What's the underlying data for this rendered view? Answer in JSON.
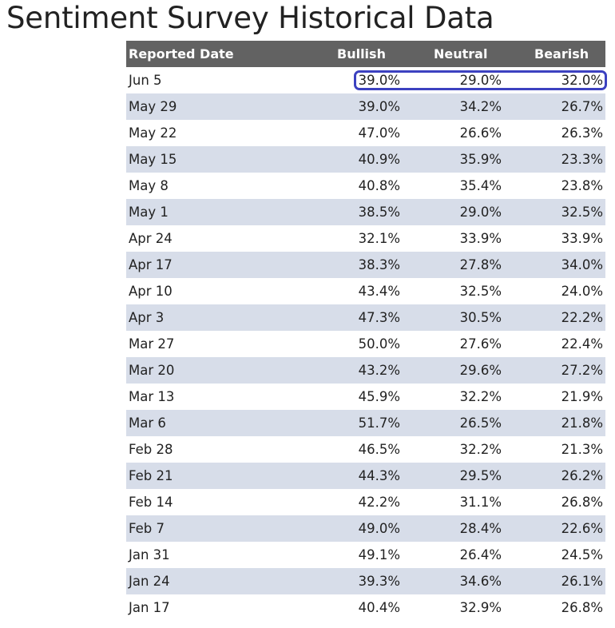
{
  "title": "Sentiment Survey Historical Data",
  "table": {
    "headers": {
      "date": "Reported Date",
      "bullish": "Bullish",
      "neutral": "Neutral",
      "bearish": "Bearish"
    },
    "rows": [
      {
        "date": "Jun 5",
        "bullish": "39.0%",
        "neutral": "29.0%",
        "bearish": "32.0%"
      },
      {
        "date": "May 29",
        "bullish": "39.0%",
        "neutral": "34.2%",
        "bearish": "26.7%"
      },
      {
        "date": "May 22",
        "bullish": "47.0%",
        "neutral": "26.6%",
        "bearish": "26.3%"
      },
      {
        "date": "May 15",
        "bullish": "40.9%",
        "neutral": "35.9%",
        "bearish": "23.3%"
      },
      {
        "date": "May 8",
        "bullish": "40.8%",
        "neutral": "35.4%",
        "bearish": "23.8%"
      },
      {
        "date": "May 1",
        "bullish": "38.5%",
        "neutral": "29.0%",
        "bearish": "32.5%"
      },
      {
        "date": "Apr 24",
        "bullish": "32.1%",
        "neutral": "33.9%",
        "bearish": "33.9%"
      },
      {
        "date": "Apr 17",
        "bullish": "38.3%",
        "neutral": "27.8%",
        "bearish": "34.0%"
      },
      {
        "date": "Apr 10",
        "bullish": "43.4%",
        "neutral": "32.5%",
        "bearish": "24.0%"
      },
      {
        "date": "Apr 3",
        "bullish": "47.3%",
        "neutral": "30.5%",
        "bearish": "22.2%"
      },
      {
        "date": "Mar 27",
        "bullish": "50.0%",
        "neutral": "27.6%",
        "bearish": "22.4%"
      },
      {
        "date": "Mar 20",
        "bullish": "43.2%",
        "neutral": "29.6%",
        "bearish": "27.2%"
      },
      {
        "date": "Mar 13",
        "bullish": "45.9%",
        "neutral": "32.2%",
        "bearish": "21.9%"
      },
      {
        "date": "Mar 6",
        "bullish": "51.7%",
        "neutral": "26.5%",
        "bearish": "21.8%"
      },
      {
        "date": "Feb 28",
        "bullish": "46.5%",
        "neutral": "32.2%",
        "bearish": "21.3%"
      },
      {
        "date": "Feb 21",
        "bullish": "44.3%",
        "neutral": "29.5%",
        "bearish": "26.2%"
      },
      {
        "date": "Feb 14",
        "bullish": "42.2%",
        "neutral": "31.1%",
        "bearish": "26.8%"
      },
      {
        "date": "Feb 7",
        "bullish": "49.0%",
        "neutral": "28.4%",
        "bearish": "22.6%"
      },
      {
        "date": "Jan 31",
        "bullish": "49.1%",
        "neutral": "26.4%",
        "bearish": "24.5%"
      },
      {
        "date": "Jan 24",
        "bullish": "39.3%",
        "neutral": "34.6%",
        "bearish": "26.1%"
      },
      {
        "date": "Jan 17",
        "bullish": "40.4%",
        "neutral": "32.9%",
        "bearish": "26.8%"
      }
    ]
  },
  "colors": {
    "header_bg": "#626262",
    "stripe_bg": "#d7dde9",
    "highlight_ring": "#3c41c0"
  }
}
